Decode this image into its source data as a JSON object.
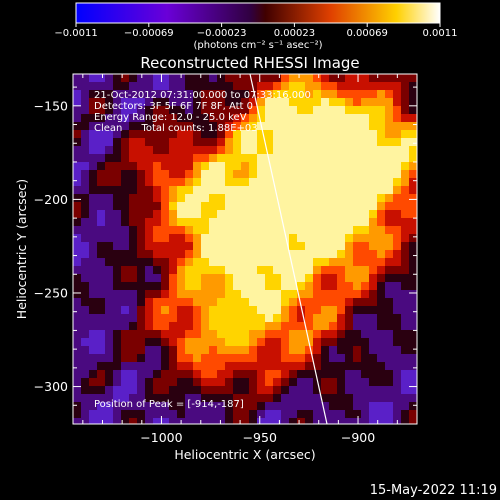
{
  "colorbar": {
    "ticks": [
      "-0.0011",
      "-0.00069",
      "-0.00023",
      "0.00023",
      "0.00069",
      "0.0011"
    ],
    "unit_label": "(photons cm⁻² s⁻¹ asec⁻²)"
  },
  "chart_data": {
    "type": "heatmap",
    "title": "Reconstructed RHESSI Image",
    "xlabel": "Heliocentric X (arcsec)",
    "ylabel": "Heliocentric Y (arcsec)",
    "xlim": [
      -1045,
      -870
    ],
    "ylim": [
      -320,
      -133
    ],
    "x_ticks": [
      -1000,
      -950,
      -900
    ],
    "x_tick_labels": [
      "−1000",
      "−950",
      "−900"
    ],
    "y_ticks": [
      -150,
      -200,
      -250,
      -300
    ],
    "y_tick_labels": [
      "−150",
      "−200",
      "−250",
      "−300"
    ],
    "color_range": [
      -0.0011,
      0.0011
    ],
    "peak_position": [
      -914,
      -187
    ],
    "info_lines": [
      "21-Oct-2012 07:31:00.000 to 07:33:16.000",
      "Detectors: 3F 5F 6F 7F 8F, Att 0",
      "Energy Range: 12.0 - 25.0 keV",
      "Clean      Total counts: 1.88E+03"
    ],
    "peak_label": "Position of Peak = [-914,-187]"
  },
  "footer": {
    "timestamp": "15-May-2022 11:19"
  }
}
